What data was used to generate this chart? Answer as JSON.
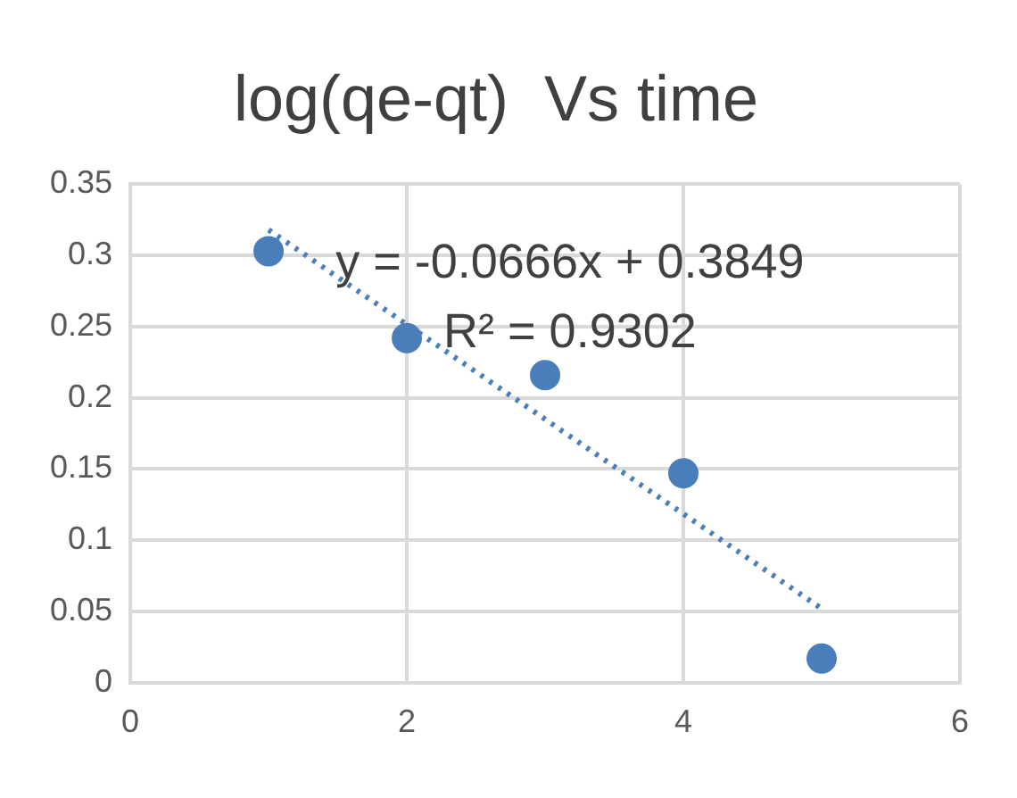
{
  "chart_data": {
    "type": "scatter",
    "title": "log(qe-qt)  Vs time",
    "series": [
      {
        "color": "#4a7ebb",
        "x": [
          1,
          2,
          3,
          4,
          5
        ],
        "values": [
          0.303,
          0.242,
          0.216,
          0.147,
          0.017
        ],
        "marker": "circle"
      },
      {
        "type": "line",
        "color": "#4a7ebb",
        "x": [
          1,
          5
        ],
        "values": [
          0.318,
          0.052
        ],
        "line_style": "dotted",
        "marker": "none"
      }
    ],
    "annotations": [
      "y = -0.0666x + 0.3849",
      "R² = 0.9302"
    ],
    "xlim": [
      0,
      6
    ],
    "xticks": [
      0,
      2,
      4,
      6
    ],
    "ylim": [
      0,
      0.35
    ],
    "yticks": [
      0,
      0.05,
      0.1,
      0.15,
      0.2,
      0.25,
      0.3,
      0.35
    ],
    "grid": true,
    "legend": false
  }
}
